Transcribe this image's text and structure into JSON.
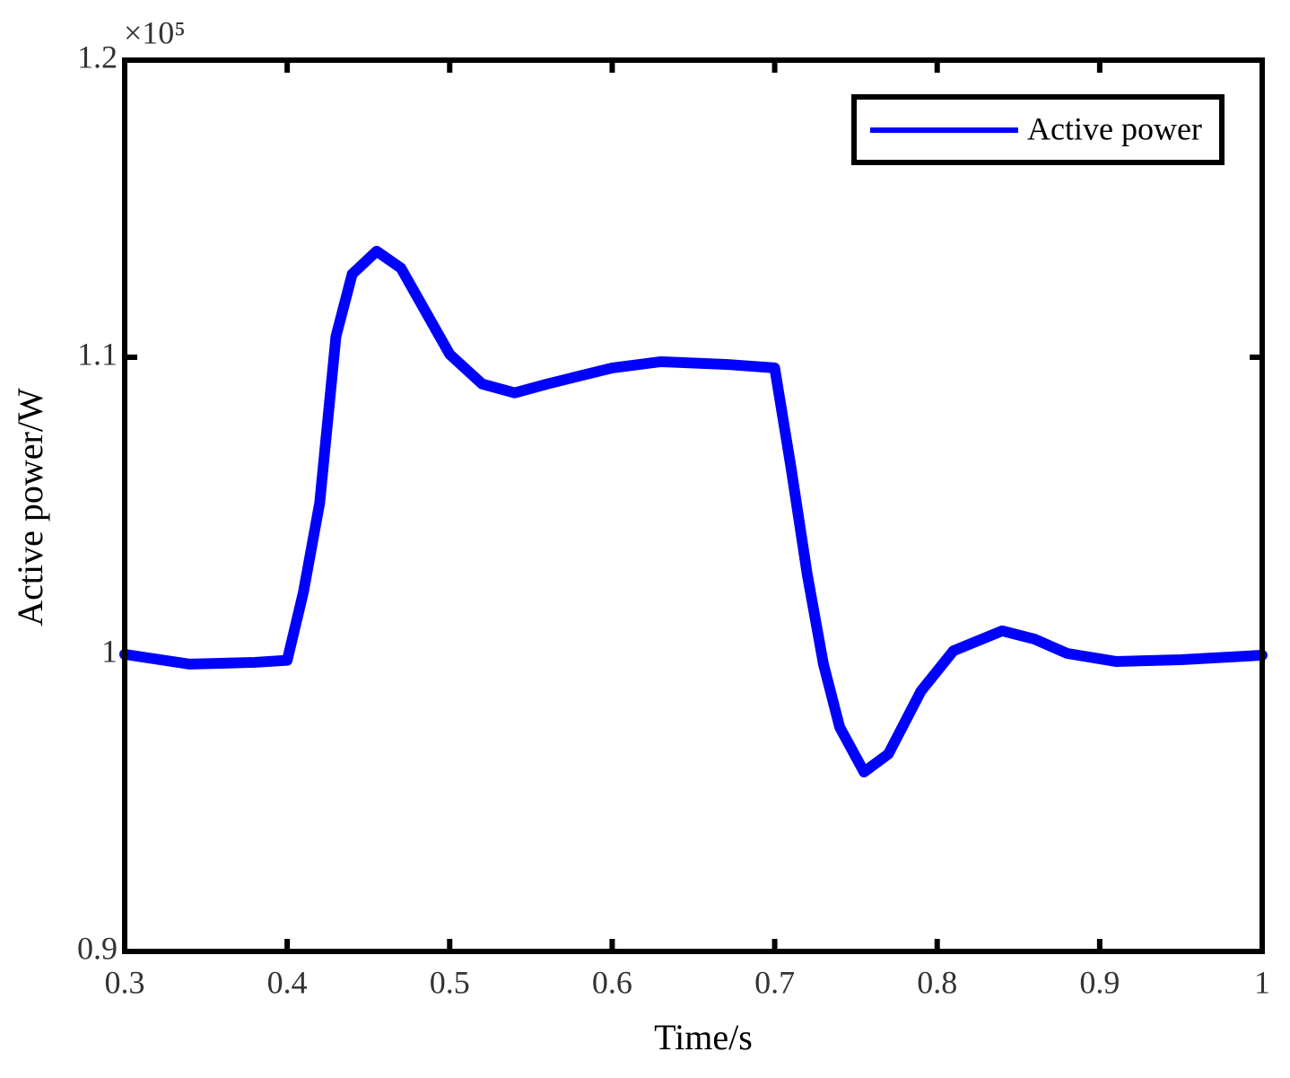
{
  "chart_data": {
    "type": "line",
    "x_label": "Time/s",
    "y_label": "Active power/W",
    "y_multiplier": "×10⁵",
    "x": [
      0.3,
      0.34,
      0.38,
      0.4,
      0.41,
      0.42,
      0.43,
      0.44,
      0.455,
      0.47,
      0.5,
      0.52,
      0.54,
      0.56,
      0.6,
      0.63,
      0.67,
      0.7,
      0.71,
      0.72,
      0.73,
      0.74,
      0.755,
      0.77,
      0.79,
      0.81,
      0.84,
      0.86,
      0.88,
      0.91,
      0.95,
      1.0
    ],
    "series": [
      {
        "name": "Active power",
        "color": "#0000ff",
        "values": [
          1.0,
          0.9967,
          0.9973,
          0.998,
          1.021,
          1.051,
          1.107,
          1.128,
          1.1357,
          1.13,
          1.101,
          1.091,
          1.088,
          1.091,
          1.0964,
          1.0985,
          1.0976,
          1.0964,
          1.063,
          1.027,
          0.9967,
          0.9755,
          0.9604,
          0.9665,
          0.9876,
          1.0012,
          1.0079,
          1.0051,
          1.0003,
          0.9976,
          0.9982,
          0.9997
        ]
      }
    ],
    "xlim": [
      0.3,
      1
    ],
    "ylim": [
      0.9,
      1.2
    ],
    "xticks": [
      0.3,
      0.4,
      0.5,
      0.6,
      0.7,
      0.8,
      0.9,
      1
    ],
    "yticks": [
      0.9,
      1,
      1.1,
      1.2
    ],
    "legend": "top-right"
  }
}
